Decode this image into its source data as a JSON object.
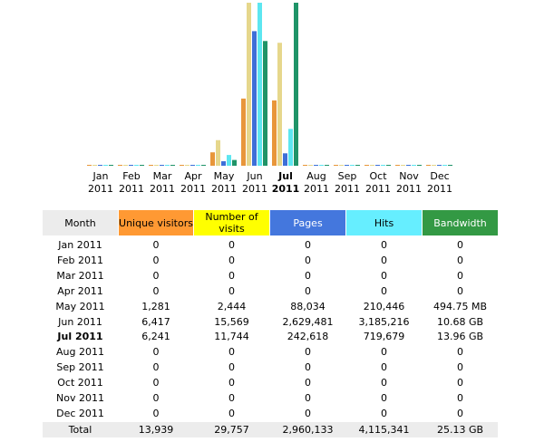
{
  "chart_data": {
    "type": "bar",
    "categories": [
      "Jan 2011",
      "Feb 2011",
      "Mar 2011",
      "Apr 2011",
      "May 2011",
      "Jun 2011",
      "Jul 2011",
      "Aug 2011",
      "Sep 2011",
      "Oct 2011",
      "Nov 2011",
      "Dec 2011"
    ],
    "bold_index": 6,
    "month_header": "Month",
    "total_label": "Total",
    "series": [
      {
        "name": "Unique visitors",
        "color": "#e8963a",
        "header_color": "#ff9933",
        "scale_with": 1,
        "values": [
          0,
          0,
          0,
          0,
          1281,
          6417,
          6241,
          0,
          0,
          0,
          0,
          0
        ],
        "value_labels": [
          "0",
          "0",
          "0",
          "0",
          "1,281",
          "6,417",
          "6,241",
          "0",
          "0",
          "0",
          "0",
          "0"
        ],
        "total": 13939,
        "total_label": "13,939"
      },
      {
        "name": "Number of visits",
        "color": "#e6d78c",
        "header_color": "#ffff00",
        "scale_with": 1,
        "values": [
          0,
          0,
          0,
          0,
          2444,
          15569,
          11744,
          0,
          0,
          0,
          0,
          0
        ],
        "value_labels": [
          "0",
          "0",
          "0",
          "0",
          "2,444",
          "15,569",
          "11,744",
          "0",
          "0",
          "0",
          "0",
          "0"
        ],
        "total": 29757,
        "total_label": "29,757"
      },
      {
        "name": "Pages",
        "color": "#3d6fd8",
        "header_color": "#4477dd",
        "scale_with": 3,
        "values": [
          0,
          0,
          0,
          0,
          88034,
          2629481,
          242618,
          0,
          0,
          0,
          0,
          0
        ],
        "value_labels": [
          "0",
          "0",
          "0",
          "0",
          "88,034",
          "2,629,481",
          "242,618",
          "0",
          "0",
          "0",
          "0",
          "0"
        ],
        "total": 2960133,
        "total_label": "2,960,133"
      },
      {
        "name": "Hits",
        "color": "#5de6f0",
        "header_color": "#66eeff",
        "scale_with": 3,
        "values": [
          0,
          0,
          0,
          0,
          210446,
          3185216,
          719679,
          0,
          0,
          0,
          0,
          0
        ],
        "value_labels": [
          "0",
          "0",
          "0",
          "0",
          "210,446",
          "3,185,216",
          "719,679",
          "0",
          "0",
          "0",
          "0",
          "0"
        ],
        "total": 4115341,
        "total_label": "4,115,341"
      },
      {
        "name": "Bandwidth",
        "color": "#1f9468",
        "header_color": "#339944",
        "scale_with": 4,
        "values": [
          0,
          0,
          0,
          0,
          0.49475,
          10.68,
          13.96,
          0,
          0,
          0,
          0,
          0
        ],
        "value_labels": [
          "0",
          "0",
          "0",
          "0",
          "494.75 MB",
          "10.68 GB",
          "13.96 GB",
          "0",
          "0",
          "0",
          "0",
          "0"
        ],
        "total": 25.13,
        "total_label": "25.13 GB"
      }
    ]
  }
}
